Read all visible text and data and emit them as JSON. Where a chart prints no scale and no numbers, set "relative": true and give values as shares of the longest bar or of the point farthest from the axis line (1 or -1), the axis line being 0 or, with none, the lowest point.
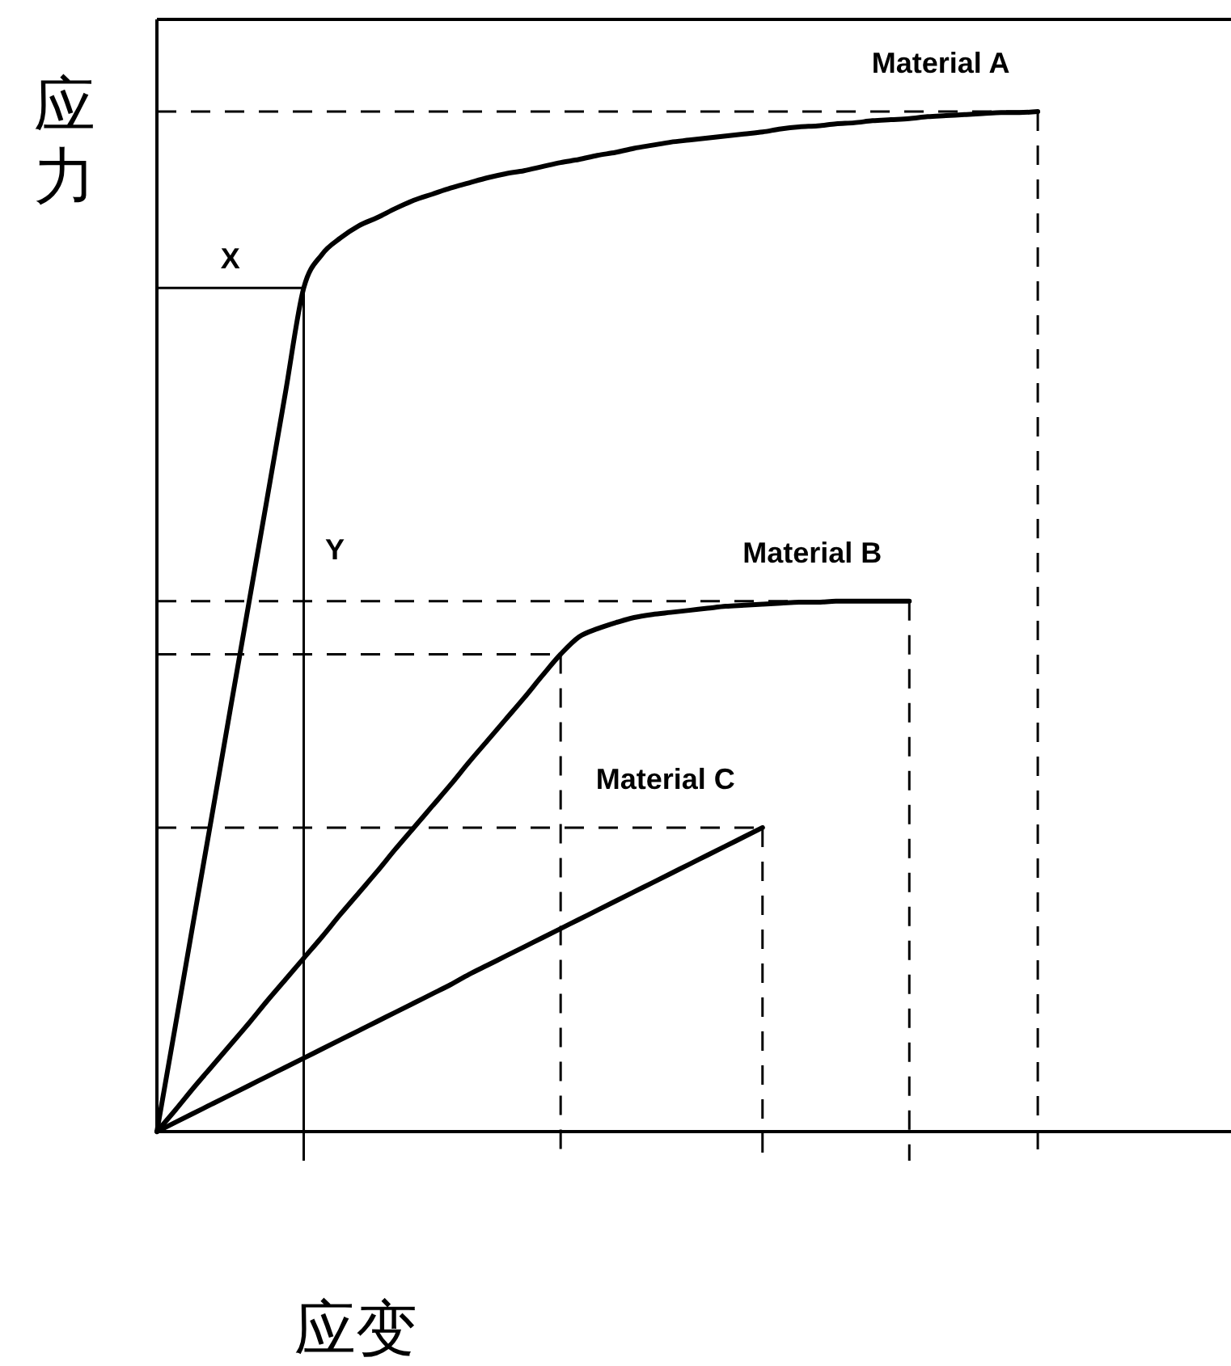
{
  "chart_data": {
    "type": "line",
    "relative": true,
    "xlabel": "应变",
    "ylabel": "应力",
    "marker": "none",
    "line_style": "solid",
    "categories": [
      null,
      null,
      null,
      null,
      null,
      null,
      null,
      null,
      null,
      null,
      null,
      null,
      null,
      null,
      null,
      null,
      null,
      null,
      null,
      null,
      null,
      null,
      null,
      null,
      null,
      null,
      null,
      null,
      null,
      null,
      null,
      null,
      null,
      null,
      null,
      null,
      null,
      null,
      null,
      null,
      null,
      null,
      null,
      null,
      null,
      null,
      null,
      null,
      null,
      null,
      null,
      null,
      null,
      null,
      null,
      null,
      null,
      null,
      null
    ],
    "series": [
      {
        "name": "Material A",
        "color": "#000000",
        "values": [
          0,
          0.103,
          0.207,
          0.31,
          0.414,
          0.517,
          0.62,
          0.724,
          0.827,
          0.86,
          0.876,
          0.888,
          0.896,
          0.905,
          0.913,
          0.919,
          0.925,
          0.93,
          0.935,
          0.939,
          0.942,
          0.946,
          0.95,
          0.953,
          0.957,
          0.96,
          0.964,
          0.967,
          0.97,
          0.972,
          0.974,
          0.976,
          0.978,
          0.98,
          0.983,
          0.985,
          0.986,
          0.988,
          0.989,
          0.991,
          0.992,
          0.993,
          0.995,
          0.996,
          0.997,
          0.998,
          0.999,
          0.999,
          1,
          null,
          null,
          null,
          null,
          null,
          null,
          null,
          null,
          null,
          null
        ]
      },
      {
        "name": "Material B",
        "color": "#000000",
        "values": [
          0,
          0.021,
          0.043,
          0.064,
          0.085,
          0.106,
          0.128,
          0.149,
          0.17,
          0.191,
          0.213,
          0.234,
          0.255,
          0.277,
          0.298,
          0.319,
          0.34,
          0.362,
          0.383,
          0.404,
          0.425,
          0.447,
          0.468,
          0.485,
          0.493,
          0.499,
          0.504,
          0.507,
          0.509,
          0.511,
          0.513,
          0.515,
          0.516,
          0.517,
          0.518,
          0.519,
          0.519,
          0.52,
          0.52,
          0.52,
          0.52,
          0.52,
          null,
          null,
          null,
          null,
          null,
          null,
          null,
          null,
          null,
          null,
          null,
          null,
          null,
          null,
          null,
          null,
          null
        ]
      },
      {
        "name": "Material C",
        "color": "#000000",
        "values": [
          0,
          0.009,
          0.018,
          0.027,
          0.036,
          0.045,
          0.054,
          0.063,
          0.072,
          0.081,
          0.09,
          0.099,
          0.108,
          0.117,
          0.126,
          0.135,
          0.144,
          0.154,
          0.163,
          0.172,
          0.181,
          0.19,
          0.199,
          0.208,
          0.217,
          0.226,
          0.235,
          0.244,
          0.253,
          0.262,
          0.271,
          0.28,
          0.289,
          0.298,
          null,
          null,
          null,
          null,
          null,
          null,
          null,
          null,
          null,
          null,
          null,
          null,
          null,
          null,
          null,
          null,
          null,
          null,
          null,
          null,
          null,
          null,
          null,
          null,
          null
        ]
      }
    ],
    "ref_lines": [
      {
        "axis": "y",
        "value": 1,
        "line_style": "dashed"
      },
      {
        "axis": "y",
        "value": 0.52,
        "line_style": "dashed"
      },
      {
        "axis": "y",
        "value": 0.468,
        "line_style": "dashed"
      },
      {
        "axis": "y",
        "value": 0.298,
        "line_style": "dashed"
      },
      {
        "axis": "y",
        "value": 0.827,
        "line_style": "solid",
        "label": "X"
      }
    ],
    "annotations": [
      "Y"
    ]
  }
}
